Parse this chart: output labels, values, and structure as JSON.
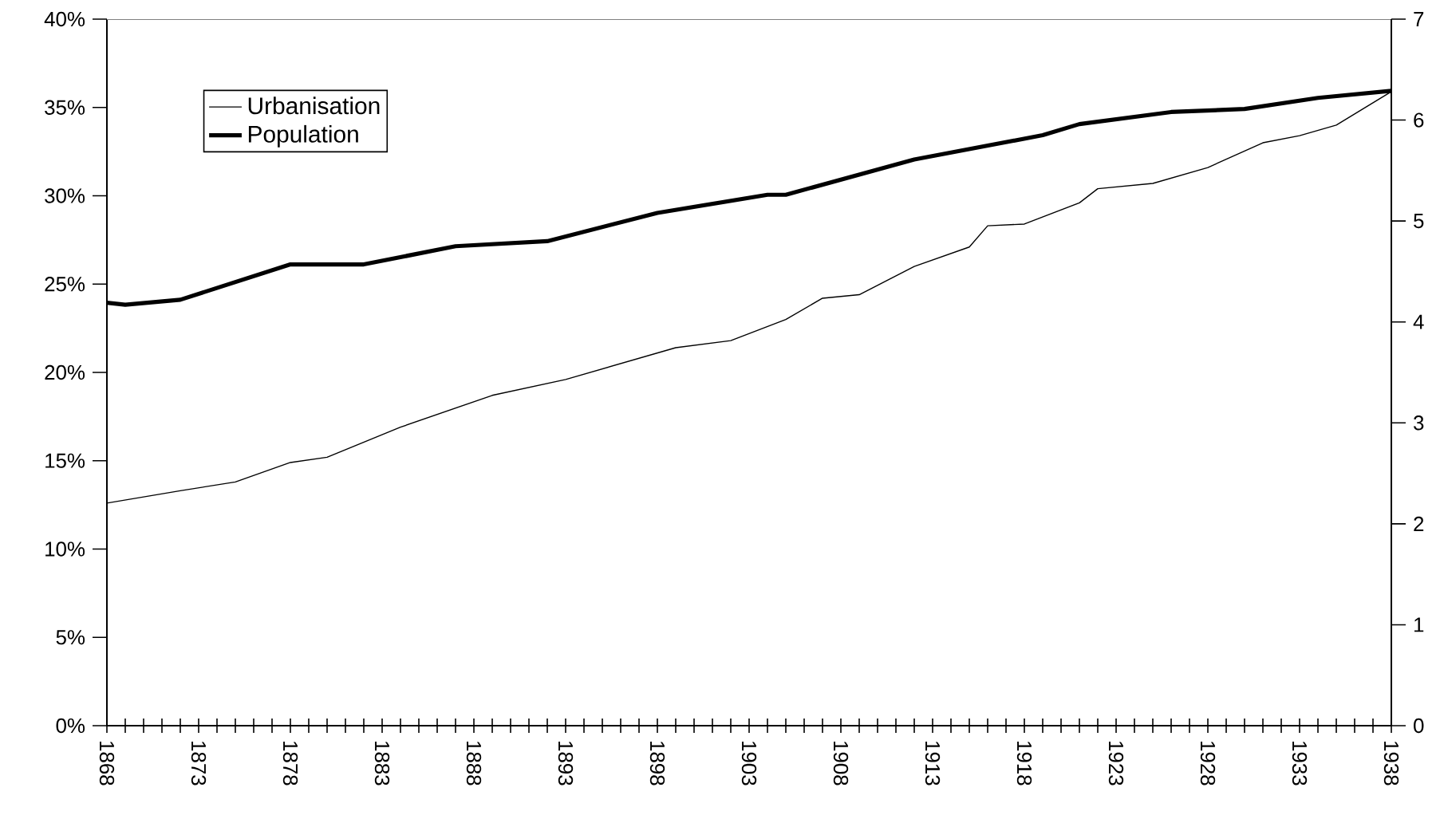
{
  "chart_data": {
    "type": "line",
    "xlim": [
      1868,
      1938
    ],
    "xticks": [
      1868,
      {
        "value": 1869,
        "label": null
      },
      {
        "value": 1870,
        "label": null
      },
      {
        "value": 1871,
        "label": null
      },
      {
        "value": 1872,
        "label": null
      },
      1873,
      {
        "value": 1874,
        "label": null
      },
      {
        "value": 1875,
        "label": null
      },
      {
        "value": 1876,
        "label": null
      },
      {
        "value": 1877,
        "label": null
      },
      1878,
      {
        "value": 1879,
        "label": null
      },
      {
        "value": 1880,
        "label": null
      },
      {
        "value": 1881,
        "label": null
      },
      {
        "value": 1882,
        "label": null
      },
      1883,
      {
        "value": 1884,
        "label": null
      },
      {
        "value": 1885,
        "label": null
      },
      {
        "value": 1886,
        "label": null
      },
      {
        "value": 1887,
        "label": null
      },
      1888,
      {
        "value": 1889,
        "label": null
      },
      {
        "value": 1890,
        "label": null
      },
      {
        "value": 1891,
        "label": null
      },
      {
        "value": 1892,
        "label": null
      },
      1893,
      {
        "value": 1894,
        "label": null
      },
      {
        "value": 1895,
        "label": null
      },
      {
        "value": 1896,
        "label": null
      },
      {
        "value": 1897,
        "label": null
      },
      1898,
      {
        "value": 1899,
        "label": null
      },
      {
        "value": 1900,
        "label": null
      },
      {
        "value": 1901,
        "label": null
      },
      {
        "value": 1902,
        "label": null
      },
      1903,
      {
        "value": 1904,
        "label": null
      },
      {
        "value": 1905,
        "label": null
      },
      {
        "value": 1906,
        "label": null
      },
      {
        "value": 1907,
        "label": null
      },
      1908,
      {
        "value": 1909,
        "label": null
      },
      {
        "value": 1910,
        "label": null
      },
      {
        "value": 1911,
        "label": null
      },
      {
        "value": 1912,
        "label": null
      },
      1913,
      {
        "value": 1914,
        "label": null
      },
      {
        "value": 1915,
        "label": null
      },
      {
        "value": 1916,
        "label": null
      },
      {
        "value": 1917,
        "label": null
      },
      1918,
      {
        "value": 1919,
        "label": null
      },
      {
        "value": 1920,
        "label": null
      },
      {
        "value": 1921,
        "label": null
      },
      {
        "value": 1922,
        "label": null
      },
      1923,
      {
        "value": 1924,
        "label": null
      },
      {
        "value": 1925,
        "label": null
      },
      {
        "value": 1926,
        "label": null
      },
      {
        "value": 1927,
        "label": null
      },
      1928,
      {
        "value": 1929,
        "label": null
      },
      {
        "value": 1930,
        "label": null
      },
      {
        "value": 1931,
        "label": null
      },
      {
        "value": 1932,
        "label": null
      },
      1933,
      {
        "value": 1934,
        "label": null
      },
      {
        "value": 1935,
        "label": null
      },
      {
        "value": 1936,
        "label": null
      },
      {
        "value": 1937,
        "label": null
      },
      1938
    ],
    "ylim": [
      0,
      40
    ],
    "yticks": [
      {
        "value": 0,
        "label": "0%"
      },
      {
        "value": 5,
        "label": "5%"
      },
      {
        "value": 10,
        "label": "10%"
      },
      {
        "value": 15,
        "label": "15%"
      },
      {
        "value": 20,
        "label": "20%"
      },
      {
        "value": 25,
        "label": "25%"
      },
      {
        "value": 30,
        "label": "30%"
      },
      {
        "value": 35,
        "label": "35%"
      },
      {
        "value": 40,
        "label": "40%"
      }
    ],
    "y2lim": [
      0,
      7
    ],
    "y2ticks": [
      0,
      1,
      2,
      3,
      4,
      5,
      6,
      7
    ],
    "legend": "top left",
    "marker": "none",
    "line_style": "solid",
    "series": [
      {
        "name": "Urbanisation",
        "color": "#000000",
        "x": [
          1868,
          1872,
          1875,
          1878,
          1880,
          1884,
          1889,
          1893,
          1899,
          1902,
          1905,
          1907,
          1909,
          1912,
          1915,
          1916,
          1918,
          1921,
          1922,
          1925,
          1928,
          1931,
          1933,
          1935,
          1938
        ],
        "values": [
          12.6,
          13.3,
          13.8,
          14.9,
          15.2,
          16.9,
          18.7,
          19.6,
          21.4,
          21.8,
          23.0,
          24.2,
          24.4,
          26.0,
          27.1,
          28.3,
          28.4,
          29.6,
          30.4,
          30.7,
          31.6,
          33.0,
          33.4,
          34.0,
          35.9
        ]
      },
      {
        "name": "Population",
        "color": "#000000",
        "axis": "y2",
        "x": [
          1868,
          1869,
          1872,
          1878,
          1882,
          1887,
          1892,
          1898,
          1904,
          1905,
          1912,
          1919,
          1921,
          1926,
          1930,
          1934,
          1938
        ],
        "values": [
          4.19,
          4.17,
          4.22,
          4.57,
          4.57,
          4.75,
          4.8,
          5.08,
          5.26,
          5.26,
          5.61,
          5.85,
          5.96,
          6.08,
          6.11,
          6.22,
          6.29
        ]
      }
    ]
  }
}
